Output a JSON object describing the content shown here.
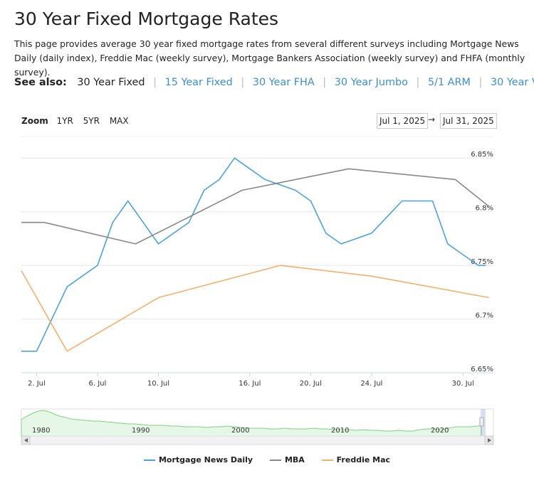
{
  "page": {
    "title": "30 Year Fixed Mortgage Rates",
    "description": "This page provides average 30 year fixed mortgage rates from several different surveys including Mortgage News Daily (daily index), Freddie Mac (weekly survey), Mortgage Bankers Association (weekly survey) and FHFA (monthly survey)."
  },
  "see_also": {
    "label": "See also:",
    "current": "30 Year Fixed",
    "links": [
      "15 Year Fixed",
      "30 Year FHA",
      "30 Year Jumbo",
      "5/1 ARM",
      "30 Year VA"
    ]
  },
  "zoom": {
    "label": "Zoom",
    "buttons": [
      "1YR",
      "5YR",
      "MAX"
    ]
  },
  "range": {
    "from": "Jul 1, 2025",
    "separator": "→",
    "to": "Jul 31, 2025"
  },
  "chart_data": {
    "type": "line",
    "x_unit": "July 2025 day",
    "xlim": [
      1,
      32
    ],
    "ylim": [
      6.65,
      6.87
    ],
    "yticks": [
      6.65,
      6.7,
      6.75,
      6.8,
      6.85
    ],
    "ytick_labels": [
      "6.65%",
      "6.7%",
      "6.75%",
      "6.8%",
      "6.85%"
    ],
    "xticks": [
      2,
      6,
      10,
      16,
      20,
      24,
      30
    ],
    "xtick_labels": [
      "2. Jul",
      "6. Jul",
      "10. Jul",
      "16. Jul",
      "20. Jul",
      "24. Jul",
      "30. Jul"
    ],
    "series": [
      {
        "name": "Mortgage News Daily",
        "color": "#4aa3df",
        "x": [
          1,
          2,
          3,
          4,
          5,
          6,
          7,
          8,
          9,
          10,
          11,
          12,
          13,
          14,
          15,
          16,
          17,
          18,
          19,
          20,
          21,
          22,
          23,
          24,
          25,
          26,
          27,
          28,
          29,
          30,
          31,
          31.5
        ],
        "y": [
          6.67,
          6.67,
          6.7,
          6.73,
          6.74,
          6.75,
          6.79,
          6.81,
          6.79,
          6.77,
          6.78,
          6.79,
          6.82,
          6.83,
          6.85,
          6.84,
          6.83,
          6.825,
          6.82,
          6.81,
          6.78,
          6.77,
          6.775,
          6.78,
          6.795,
          6.81,
          6.81,
          6.81,
          6.77,
          6.76,
          6.75,
          6.75
        ]
      },
      {
        "name": "MBA",
        "color": "#888888",
        "x": [
          1,
          2.5,
          8.5,
          15.5,
          22.5,
          29.5,
          31.7
        ],
        "y": [
          6.79,
          6.79,
          6.77,
          6.82,
          6.84,
          6.83,
          6.805
        ]
      },
      {
        "name": "Freddie Mac",
        "color": "#f5b06a",
        "x": [
          1,
          4,
          10,
          18,
          24,
          31.7
        ],
        "y": [
          6.745,
          6.67,
          6.72,
          6.75,
          6.74,
          6.72
        ]
      }
    ],
    "navigator": {
      "xtick_labels": [
        "1980",
        "1990",
        "2000",
        "2010",
        "2020"
      ]
    }
  }
}
